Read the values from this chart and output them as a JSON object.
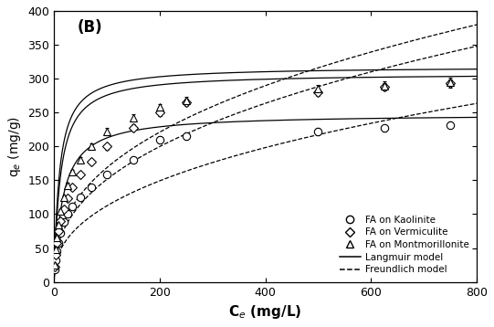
{
  "title": "(B)",
  "xlabel": "C$_e$ (mg/L)",
  "ylabel": "q$_e$ (mg/g)",
  "xlim": [
    0,
    800
  ],
  "ylim": [
    0,
    400
  ],
  "xticks": [
    0,
    200,
    400,
    600,
    800
  ],
  "yticks": [
    0,
    50,
    100,
    150,
    200,
    250,
    300,
    350,
    400
  ],
  "kaolinite_x": [
    1,
    3,
    5,
    8,
    12,
    18,
    25,
    35,
    50,
    70,
    100,
    150,
    200,
    250,
    500,
    625,
    750
  ],
  "kaolinite_y": [
    18,
    32,
    45,
    58,
    72,
    88,
    100,
    112,
    125,
    140,
    158,
    180,
    210,
    215,
    222,
    227,
    232
  ],
  "kaolinite_err": [
    2,
    2,
    2,
    2,
    2,
    3,
    3,
    3,
    3,
    3,
    4,
    4,
    5,
    5,
    5,
    5,
    5
  ],
  "vermiculite_x": [
    1,
    3,
    5,
    8,
    12,
    18,
    25,
    35,
    50,
    70,
    100,
    150,
    200,
    250,
    500,
    625,
    750
  ],
  "vermiculite_y": [
    22,
    40,
    58,
    75,
    90,
    108,
    123,
    140,
    158,
    178,
    200,
    228,
    250,
    265,
    280,
    288,
    293
  ],
  "vermiculite_err": [
    2,
    2,
    2,
    2,
    2,
    3,
    3,
    3,
    4,
    4,
    5,
    5,
    5,
    5,
    6,
    6,
    6
  ],
  "montmorillonite_x": [
    1,
    3,
    5,
    8,
    12,
    18,
    25,
    35,
    50,
    70,
    100,
    150,
    200,
    250,
    500,
    625,
    750
  ],
  "montmorillonite_y": [
    25,
    48,
    65,
    85,
    105,
    125,
    143,
    162,
    180,
    200,
    222,
    242,
    258,
    268,
    285,
    290,
    295
  ],
  "montmorillonite_err": [
    2,
    2,
    2,
    2,
    2,
    3,
    3,
    3,
    4,
    4,
    5,
    5,
    5,
    5,
    6,
    6,
    6
  ],
  "langmuir_kaolinite": {
    "qmax": 248,
    "KL": 0.06
  },
  "langmuir_vermiculite": {
    "qmax": 308,
    "KL": 0.085
  },
  "langmuir_montmorillonite": {
    "qmax": 318,
    "KL": 0.1
  },
  "freundlich_kaolinite": {
    "KF": 17.0,
    "n": 0.41
  },
  "freundlich_vermiculite": {
    "KF": 24.0,
    "n": 0.4
  },
  "freundlich_montmorillonite": {
    "KF": 28.0,
    "n": 0.39
  },
  "legend_entries": [
    "FA on Kaolinite",
    "FA on Vermiculite",
    "FA on Montmorillonite",
    "Langmuir model",
    "Freundlich model"
  ],
  "marker_size": 6,
  "background_color": "#ffffff"
}
